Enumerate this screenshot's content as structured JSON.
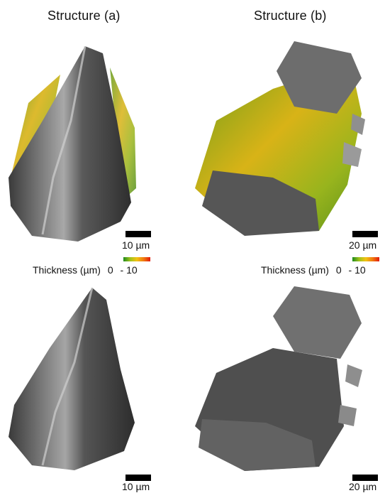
{
  "titles": {
    "a": "Structure (a)",
    "b": "Structure (b)"
  },
  "scalebars": {
    "a_top": "10 µm",
    "b_top": "20 µm",
    "a_bottom": "10 µm",
    "b_bottom": "20 µm"
  },
  "colorbar": {
    "label": "Thickness (µm)",
    "min": "0",
    "max": "- 10",
    "colors": [
      "#1e8a1e",
      "#9fc21a",
      "#f2c212",
      "#f07a10",
      "#e11a0a"
    ]
  }
}
